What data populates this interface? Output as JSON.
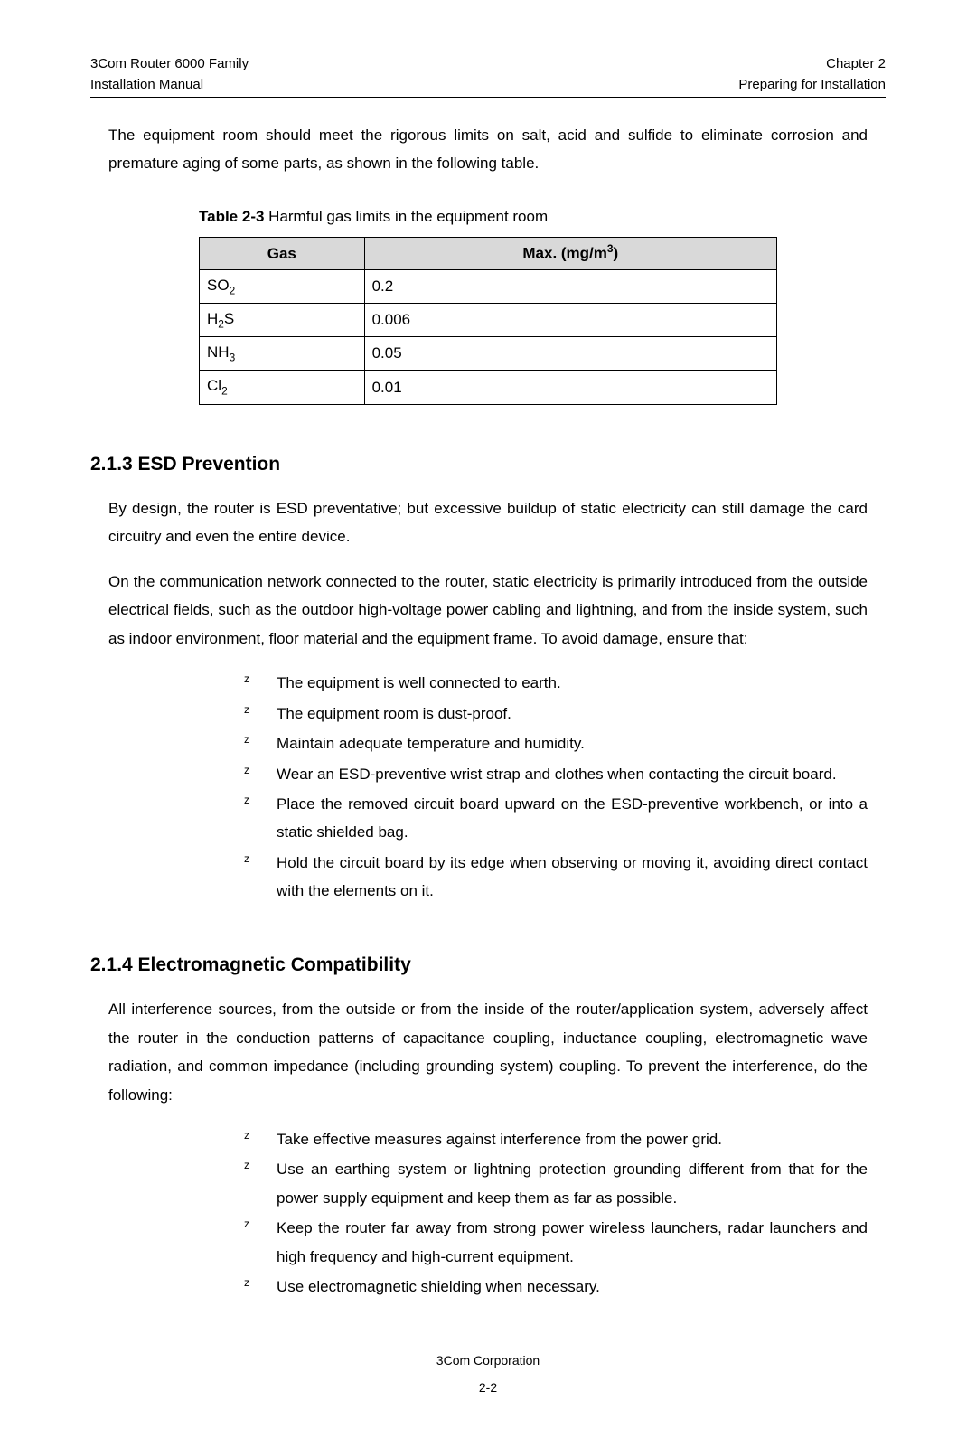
{
  "header": {
    "left1": "3Com Router 6000 Family",
    "left2": "Installation Manual",
    "right1": "Chapter 2",
    "right2": "Preparing for Installation"
  },
  "intro_para": "The equipment room should meet the rigorous limits on salt, acid and sulfide to eliminate corrosion and premature aging of some parts, as shown in the following table.",
  "table": {
    "caption_prefix": "Table 2-3",
    "caption_rest": " Harmful gas limits in the equipment room",
    "col1_header": "Gas",
    "col2_header_prefix": "Max. (mg/m",
    "col2_header_sup": "3",
    "col2_header_suffix": ")",
    "rows": [
      {
        "gas_base": "SO",
        "gas_sub": "2",
        "max": "0.2"
      },
      {
        "gas_base": "H",
        "gas_sub": "2",
        "gas_suffix": "S",
        "max": "0.006"
      },
      {
        "gas_base": "NH",
        "gas_sub": "3",
        "max": "0.05"
      },
      {
        "gas_base": "Cl",
        "gas_sub": "2",
        "max": "0.01"
      }
    ],
    "header_bg": "#d9d9d9",
    "border_color": "#000000"
  },
  "sec213": {
    "heading": "2.1.3  ESD Prevention",
    "p1": "By design, the router is ESD preventative; but excessive buildup of static electricity can still damage the card circuitry and even the entire device.",
    "p2": "On the communication network connected to the router, static electricity is primarily introduced from the outside electrical fields, such as the outdoor high-voltage power cabling and lightning, and from the inside system, such as indoor environment, floor material and the equipment frame. To avoid damage, ensure that:",
    "bullets": [
      "The equipment is well connected to earth.",
      "The equipment room is dust-proof.",
      "Maintain adequate temperature and humidity.",
      "Wear an ESD-preventive wrist strap and clothes when contacting the circuit board.",
      "Place the removed circuit board upward on the ESD-preventive workbench, or into a static shielded bag.",
      "Hold the circuit board by its edge when observing or moving it, avoiding direct contact with the elements on it."
    ]
  },
  "sec214": {
    "heading": "2.1.4  Electromagnetic Compatibility",
    "p1": "All interference sources, from the outside or from the inside of the router/application system, adversely affect the router in the conduction patterns of capacitance coupling, inductance coupling, electromagnetic wave radiation, and common impedance (including grounding system) coupling. To prevent the interference, do the following:",
    "bullets": [
      "Take effective measures against interference from the power grid.",
      "Use an earthing system or lightning protection grounding different from that for the power supply equipment and keep them as far as possible.",
      "Keep the router far away from strong power wireless launchers, radar launchers and high frequency and high-current equipment.",
      "Use electromagnetic shielding when necessary."
    ]
  },
  "footer": {
    "line1": "3Com Corporation",
    "line2": "2-2"
  }
}
